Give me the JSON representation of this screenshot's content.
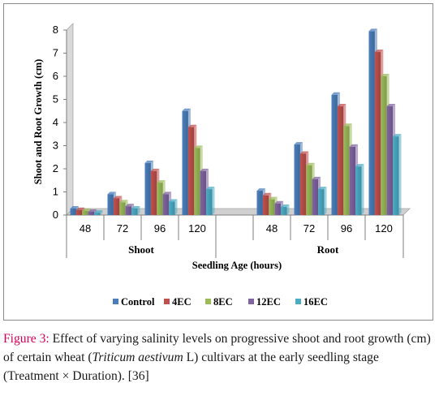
{
  "chart_data": {
    "type": "bar",
    "groups": [
      {
        "label": "Shoot",
        "categories": [
          "48",
          "72",
          "96",
          "120"
        ]
      },
      {
        "label": "Root",
        "categories": [
          "48",
          "72",
          "96",
          "120"
        ]
      }
    ],
    "categories": [
      "48",
      "72",
      "96",
      "120",
      "48",
      "72",
      "96",
      "120"
    ],
    "series": [
      {
        "name": "Control",
        "color": "#4a7ebb",
        "values": [
          0.28,
          0.9,
          2.25,
          4.5,
          1.05,
          3.05,
          5.2,
          7.95
        ]
      },
      {
        "name": "4EC",
        "color": "#c0504d",
        "values": [
          0.22,
          0.72,
          1.9,
          3.8,
          0.85,
          2.65,
          4.7,
          7.05
        ]
      },
      {
        "name": "8EC",
        "color": "#9bbb59",
        "values": [
          0.18,
          0.55,
          1.4,
          2.9,
          0.68,
          2.15,
          3.85,
          6.0
        ]
      },
      {
        "name": "12EC",
        "color": "#8064a2",
        "values": [
          0.14,
          0.38,
          0.9,
          1.9,
          0.5,
          1.55,
          2.95,
          4.7
        ]
      },
      {
        "name": "16EC",
        "color": "#4bacc6",
        "values": [
          0.1,
          0.28,
          0.58,
          1.12,
          0.35,
          1.12,
          2.1,
          3.4
        ]
      }
    ],
    "yticks": [
      "0",
      "1",
      "2",
      "3",
      "4",
      "5",
      "6",
      "7",
      "8"
    ],
    "ylim": [
      0,
      8
    ],
    "xlabel": "Seedling Age (hours)",
    "ylabel": "Shoot and Root Growth (cm)",
    "legend_position": "bottom",
    "grid": false
  },
  "caption": {
    "label": "Figure 3:",
    "text_before": " Effect of varying salinity levels on progressive shoot and root growth (cm) of certain wheat (",
    "italic": "Triticum aestivum",
    "text_after": " L) cultivars at the early seedling stage (Treatment × Duration). [36]"
  }
}
